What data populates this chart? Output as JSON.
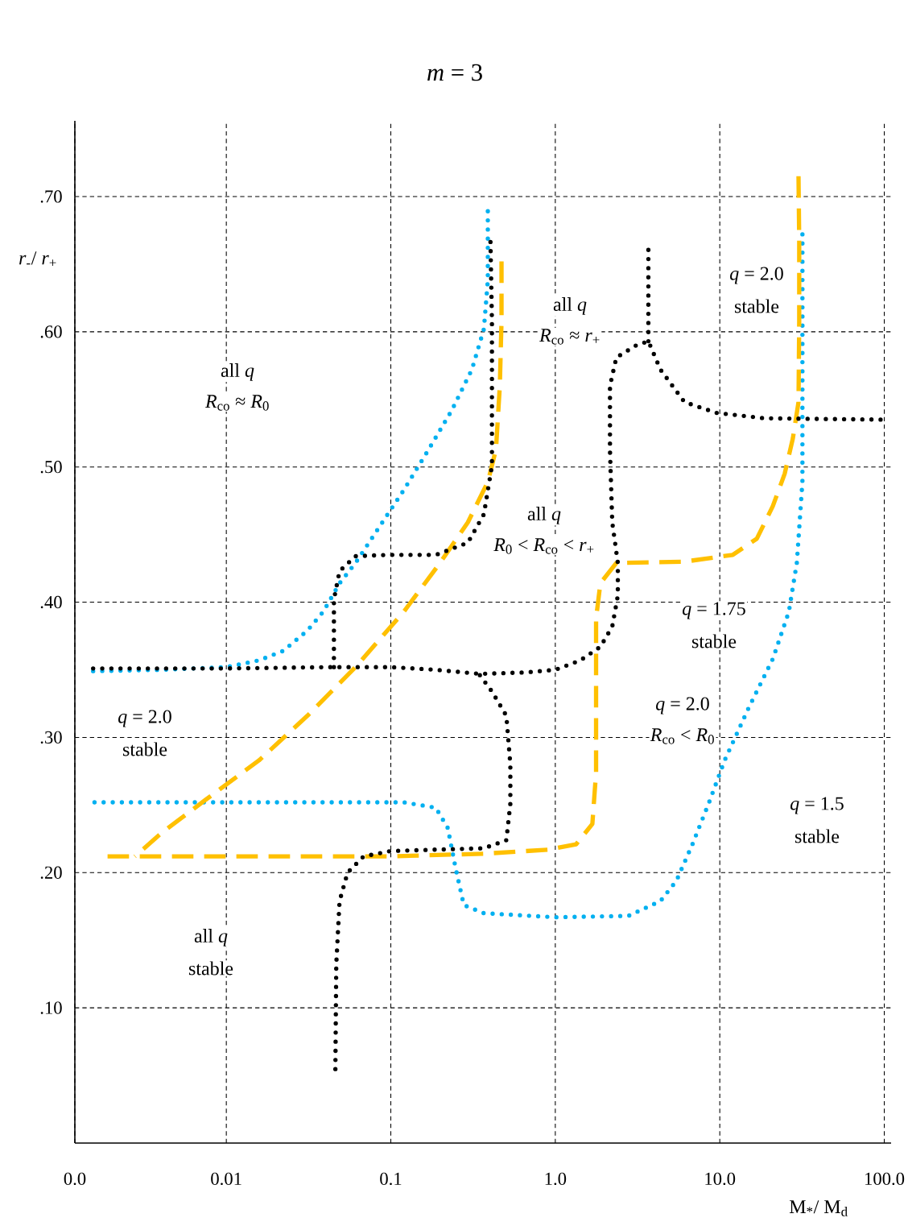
{
  "chart_data": {
    "type": "line",
    "title": "*m* = 3",
    "xlabel": "M$_{*}$/ M$_{d}$",
    "ylabel": "*r*$_{-}$/ *r*$_{+}$",
    "log": "x",
    "grid": true,
    "xlim": [
      0.0012,
      110
    ],
    "ylim": [
      0,
      0.756
    ],
    "xticks": [
      {
        "value": 0.0012,
        "label": "0.0"
      },
      {
        "value": 0.01,
        "label": "0.01"
      },
      {
        "value": 0.1,
        "label": "0.1"
      },
      {
        "value": 1,
        "label": "1.0"
      },
      {
        "value": 10,
        "label": "10.0"
      },
      {
        "value": 100,
        "label": "100.0"
      }
    ],
    "yticks": [
      {
        "value": 0.1,
        "label": ".10"
      },
      {
        "value": 0.2,
        "label": ".20"
      },
      {
        "value": 0.3,
        "label": ".30"
      },
      {
        "value": 0.4,
        "label": ".40"
      },
      {
        "value": 0.5,
        "label": ".50"
      },
      {
        "value": 0.6,
        "label": ".60"
      },
      {
        "value": 0.7,
        "label": ".70"
      }
    ],
    "series": [
      {
        "color": "#00b0f0",
        "line_style": "dotted",
        "x": [
          0.00155,
          0.0041,
          0.01,
          0.0158,
          0.0222,
          0.0311,
          0.0389,
          0.0488,
          0.061,
          0.0855,
          0.12,
          0.168,
          0.235,
          0.311,
          0.368,
          0.389,
          0.389
        ],
        "values": [
          0.349,
          0.35,
          0.352,
          0.357,
          0.364,
          0.379,
          0.393,
          0.414,
          0.429,
          0.456,
          0.483,
          0.512,
          0.542,
          0.572,
          0.602,
          0.638,
          0.691
        ]
      },
      {
        "color": "#00b0f0",
        "line_style": "dotted",
        "x": [
          0.00158,
          0.12,
          0.188,
          0.222,
          0.248,
          0.278,
          0.368,
          1,
          2.78,
          4.36,
          5.45,
          6.82,
          8.55,
          10.7,
          15,
          21,
          26.3,
          29.4,
          31.8,
          31.8
        ],
        "values": [
          0.252,
          0.252,
          0.248,
          0.233,
          0.203,
          0.176,
          0.17,
          0.167,
          0.168,
          0.179,
          0.194,
          0.221,
          0.251,
          0.283,
          0.322,
          0.358,
          0.393,
          0.429,
          0.489,
          0.673
        ]
      },
      {
        "color": "#ffc000",
        "line_style": "dashed",
        "x": [
          0.00278,
          0.0041,
          0.0081,
          0.0158,
          0.0311,
          0.061,
          0.12,
          0.199,
          0.294,
          0.389,
          0.436,
          0.46,
          0.471,
          0.471
        ],
        "values": [
          0.212,
          0.23,
          0.257,
          0.283,
          0.316,
          0.352,
          0.393,
          0.429,
          0.459,
          0.489,
          0.513,
          0.56,
          0.608,
          0.652
        ]
      },
      {
        "color": "#ffc000",
        "line_style": "dashed",
        "x": [
          0.00188,
          0.0955,
          0.368,
          0.904,
          1.34,
          1.68,
          1.77,
          1.77,
          1.88,
          2.35,
          6.1,
          12,
          16.8,
          21,
          24.8,
          27.8,
          30.1,
          30.4,
          30.4,
          30.1
        ],
        "values": [
          0.212,
          0.212,
          0.214,
          0.217,
          0.221,
          0.236,
          0.274,
          0.388,
          0.414,
          0.429,
          0.43,
          0.435,
          0.447,
          0.471,
          0.495,
          0.521,
          0.548,
          0.608,
          0.667,
          0.715
        ]
      },
      {
        "color": "#000000",
        "line_style": "dotted",
        "x": [
          0.00155,
          0.01,
          0.0451,
          0.1,
          0.188,
          0.348,
          0.645,
          1,
          1.42,
          1.88,
          2.22,
          2.4,
          2.4,
          2.22,
          2.15,
          2.15,
          2.35,
          3.11,
          3.68,
          4.36,
          6.1,
          9.55,
          18.8,
          101
        ],
        "values": [
          0.351,
          0.351,
          0.352,
          0.352,
          0.35,
          0.347,
          0.348,
          0.35,
          0.357,
          0.367,
          0.382,
          0.405,
          0.429,
          0.459,
          0.512,
          0.56,
          0.581,
          0.59,
          0.593,
          0.572,
          0.548,
          0.54,
          0.536,
          0.535
        ]
      },
      {
        "color": "#000000",
        "line_style": "dotted",
        "x": [
          3.68,
          3.68
        ],
        "values": [
          0.593,
          0.667
        ]
      },
      {
        "color": "#000000",
        "line_style": "dotted",
        "x": [
          0.0451,
          0.0451,
          0.0488,
          0.061,
          0.0955,
          0.188,
          0.294,
          0.368,
          0.412,
          0.412,
          0.403
        ],
        "values": [
          0.352,
          0.402,
          0.423,
          0.434,
          0.435,
          0.435,
          0.444,
          0.465,
          0.501,
          0.608,
          0.67
        ]
      },
      {
        "color": "#000000",
        "line_style": "dotted",
        "x": [
          0.348,
          0.412,
          0.504,
          0.533,
          0.533,
          0.504,
          0.368,
          0.188,
          0.1,
          0.0683,
          0.0546,
          0.0488,
          0.0466,
          0.046
        ],
        "values": [
          0.346,
          0.334,
          0.316,
          0.28,
          0.251,
          0.224,
          0.218,
          0.217,
          0.216,
          0.212,
          0.2,
          0.179,
          0.132,
          0.051
        ]
      }
    ],
    "annotations": [
      "all *q*",
      "*R*$_{co}$ ≈ *R*$_{0}$",
      "all *q*",
      "*R*$_{co}$ ≈ *r*$_{+}$",
      "*q* = 2.0",
      "stable",
      "all *q*",
      "*R*$_{0}$ < *R*$_{co}$ < *r*$_{+}$",
      "*q* = 1.75",
      "stable",
      "*q* = 2.0",
      "*R*$_{co}$ < *R*$_{0}$",
      "*q* = 2.0",
      "stable",
      "*q* = 1.5",
      "stable",
      "all *q*",
      "stable"
    ]
  }
}
